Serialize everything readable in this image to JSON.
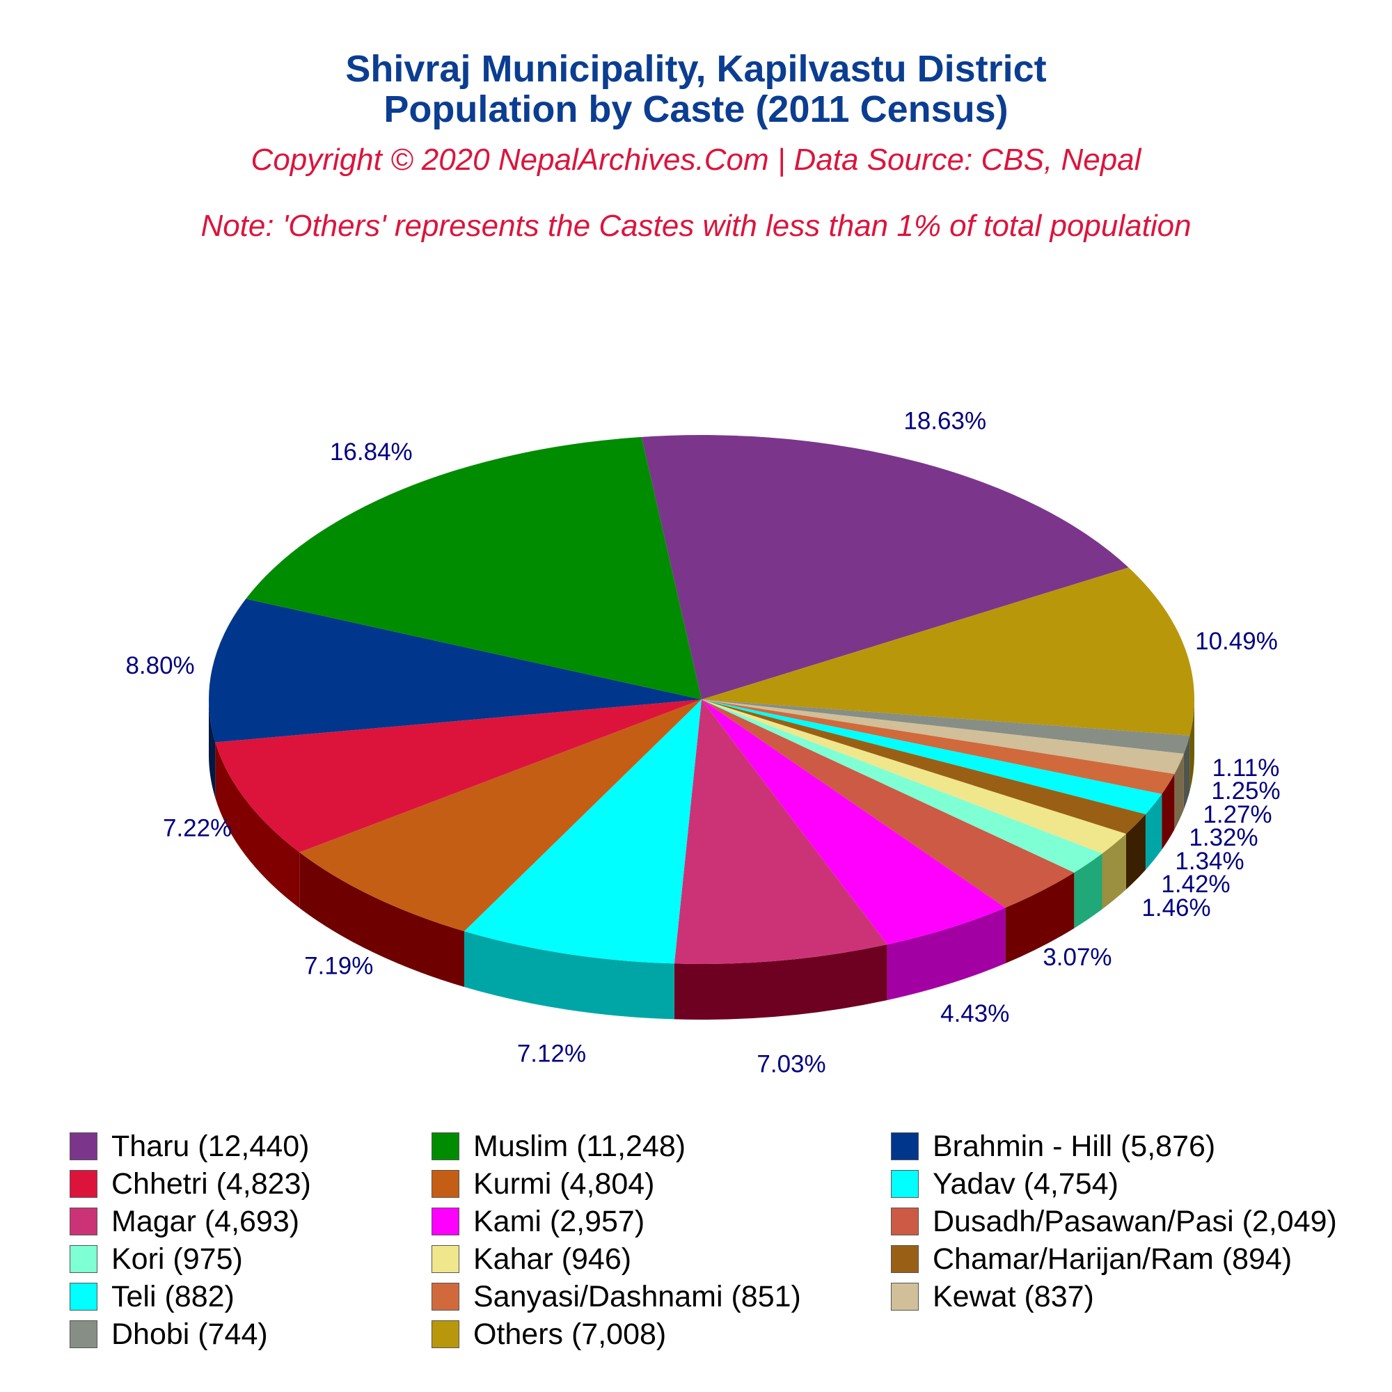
{
  "title_line1": "Shivraj Municipality, Kapilvastu District",
  "title_line2": "Population by Caste (2011 Census)",
  "copyright": "Copyright © 2020 NepalArchives.Com | Data Source: CBS, Nepal",
  "note": "Note: 'Others' represents the Castes with less than 1% of total population",
  "chart_data": {
    "type": "pie",
    "style": "3d",
    "slices": [
      {
        "label": "Tharu (12,440)",
        "value": 12440,
        "pct": "18.63%",
        "color": "#7b368c",
        "side": "#4b1f57"
      },
      {
        "label": "Others (7,008)",
        "value": 7008,
        "pct": "10.49%",
        "color": "#b8970b",
        "side": "#6f5b05"
      },
      {
        "label": "Dhobi (744)",
        "value": 744,
        "pct": "1.11%",
        "color": "#878e86",
        "side": "#4f544e"
      },
      {
        "label": "Kewat (837)",
        "value": 837,
        "pct": "1.25%",
        "color": "#d0bf99",
        "side": "#7a6a4a"
      },
      {
        "label": "Sanyasi/Dashnami (851)",
        "value": 851,
        "pct": "1.27%",
        "color": "#d06a3c",
        "side": "#6e0000"
      },
      {
        "label": "Teli (882)",
        "value": 882,
        "pct": "1.32%",
        "color": "#00ffff",
        "side": "#00a6a6"
      },
      {
        "label": "Chamar/Harijan/Ram (894)",
        "value": 894,
        "pct": "1.34%",
        "color": "#996015",
        "side": "#3a1f00"
      },
      {
        "label": "Kahar (946)",
        "value": 946,
        "pct": "1.42%",
        "color": "#f0e68c",
        "side": "#9a9040"
      },
      {
        "label": "Kori (975)",
        "value": 975,
        "pct": "1.46%",
        "color": "#7fffd4",
        "side": "#20a878"
      },
      {
        "label": "Dusadh/Pasawan/Pasi (2,049)",
        "value": 2049,
        "pct": "3.07%",
        "color": "#cd5a44",
        "side": "#6e0000"
      },
      {
        "label": "Kami (2,957)",
        "value": 2957,
        "pct": "4.43%",
        "color": "#ff00ff",
        "side": "#a300a3"
      },
      {
        "label": "Magar (4,693)",
        "value": 4693,
        "pct": "7.03%",
        "color": "#cc3377",
        "side": "#6e0022"
      },
      {
        "label": "Yadav (4,754)",
        "value": 4754,
        "pct": "7.12%",
        "color": "#00ffff",
        "side": "#00a6a6"
      },
      {
        "label": "Kurmi (4,804)",
        "value": 4804,
        "pct": "7.19%",
        "color": "#c55e15",
        "side": "#6e0000"
      },
      {
        "label": "Chhetri (4,823)",
        "value": 4823,
        "pct": "7.22%",
        "color": "#dc143c",
        "side": "#800000"
      },
      {
        "label": "Brahmin - Hill (5,876)",
        "value": 5876,
        "pct": "8.80%",
        "color": "#00368c",
        "side": "#001a45"
      },
      {
        "label": "Muslim (11,248)",
        "value": 11248,
        "pct": "16.84%",
        "color": "#008c00",
        "side": "#004d00"
      }
    ],
    "legend_order": [
      "Tharu (12,440)",
      "Muslim (11,248)",
      "Brahmin - Hill (5,876)",
      "Chhetri (4,823)",
      "Kurmi (4,804)",
      "Yadav (4,754)",
      "Magar (4,693)",
      "Kami (2,957)",
      "Dusadh/Pasawan/Pasi (2,049)",
      "Kori (975)",
      "Kahar (946)",
      "Chamar/Harijan/Ram (894)",
      "Teli (882)",
      "Sanyasi/Dashnami (851)",
      "Kewat (837)",
      "Dhobi (744)",
      "Others (7,008)"
    ],
    "legend_placement": "bottom",
    "label_color": "#000080"
  }
}
